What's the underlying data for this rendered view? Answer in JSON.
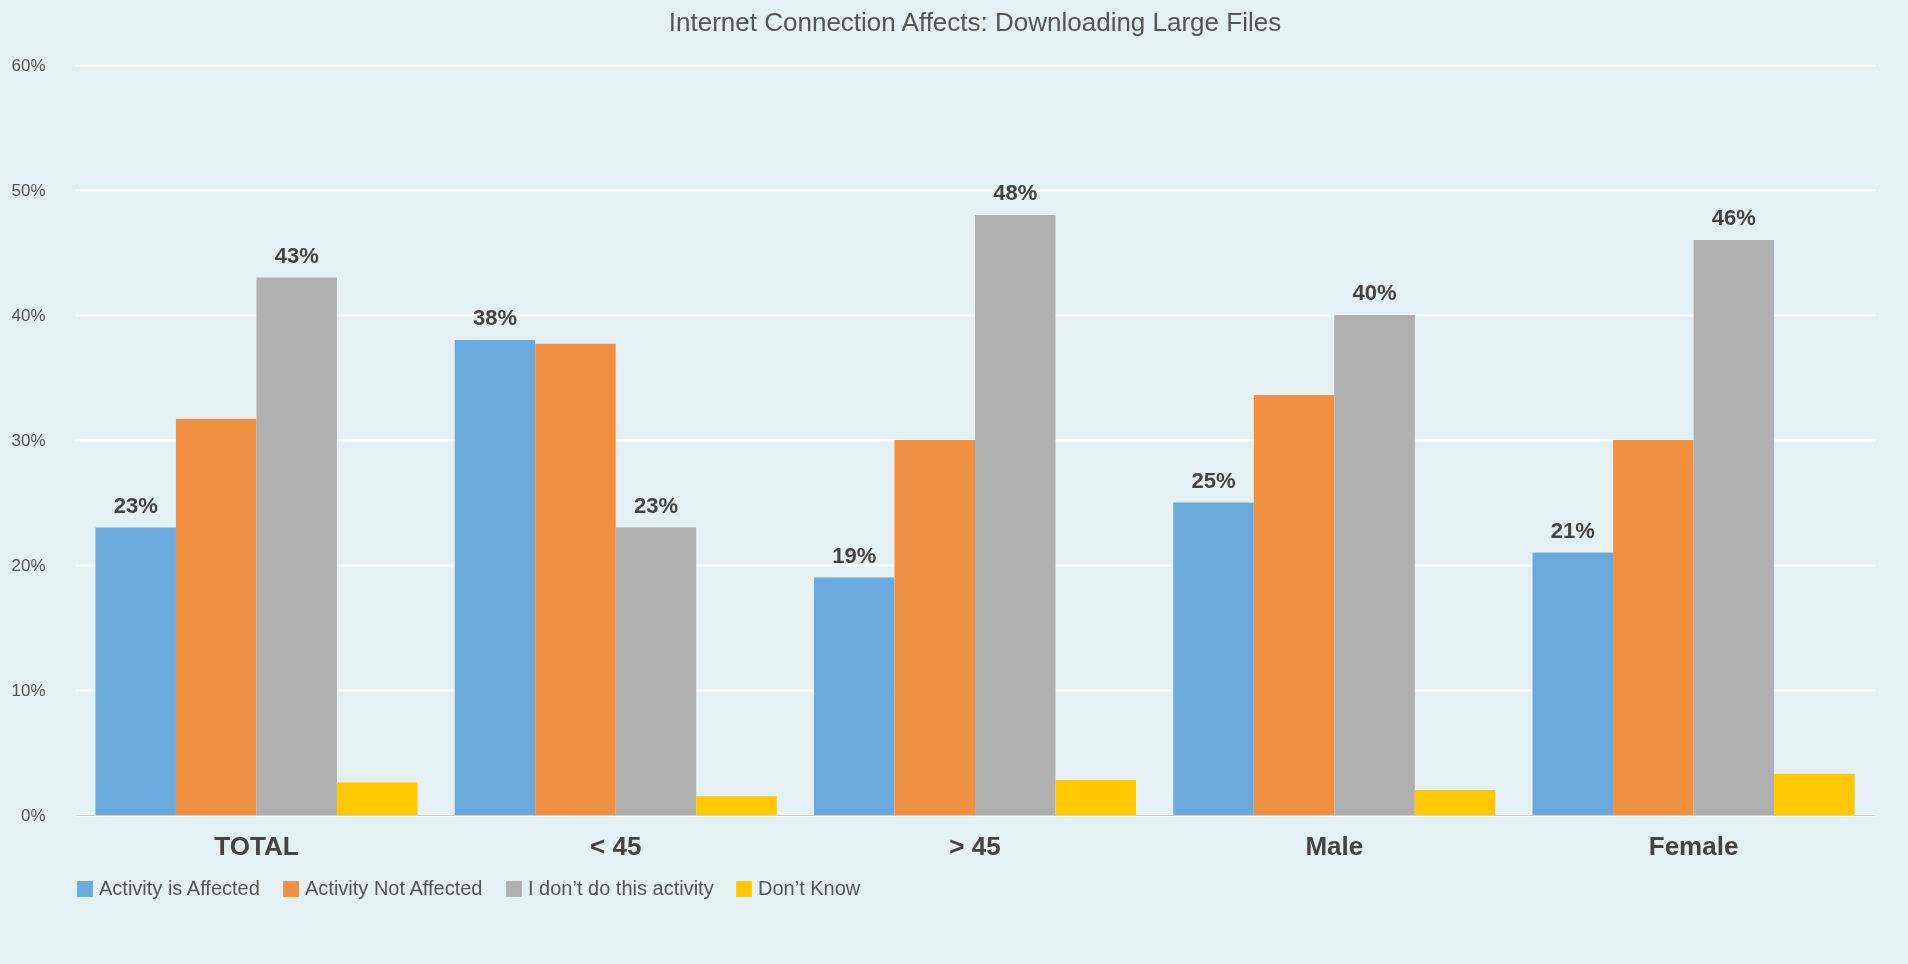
{
  "chart_data": {
    "type": "bar",
    "title": "Internet Connection Affects: Downloading Large Files",
    "categories": [
      "TOTAL",
      "< 45",
      "> 45",
      "Male",
      "Female"
    ],
    "series": [
      {
        "name": "Activity is Affected",
        "color": "#6aaadc",
        "values": [
          23,
          38,
          19,
          25,
          21
        ],
        "value_labels": [
          "23%",
          "38%",
          "19%",
          "25%",
          "21%"
        ]
      },
      {
        "name": "Activity Not Affected",
        "color": "#f09040",
        "values": [
          31.7,
          37.7,
          30,
          33.6,
          30
        ]
      },
      {
        "name": "I don’t do this activity",
        "color": "#b0b0b0",
        "values": [
          43,
          23,
          48,
          40,
          46
        ],
        "value_labels": [
          "43%",
          "23%",
          "48%",
          "40%",
          "46%"
        ]
      },
      {
        "name": "Don’t Know",
        "color": "#ffc800",
        "values": [
          2.6,
          1.5,
          2.8,
          2,
          3.3
        ]
      }
    ],
    "ylim": [
      0,
      60
    ],
    "yticks": [
      {
        "value": 0,
        "label": "0%"
      },
      {
        "value": 10,
        "label": "10%"
      },
      {
        "value": 20,
        "label": "20%"
      },
      {
        "value": 30,
        "label": "30%"
      },
      {
        "value": 40,
        "label": "40%"
      },
      {
        "value": 50,
        "label": "50%"
      },
      {
        "value": 60,
        "label": "60%"
      }
    ],
    "grid": "y",
    "legend": "bottom"
  }
}
